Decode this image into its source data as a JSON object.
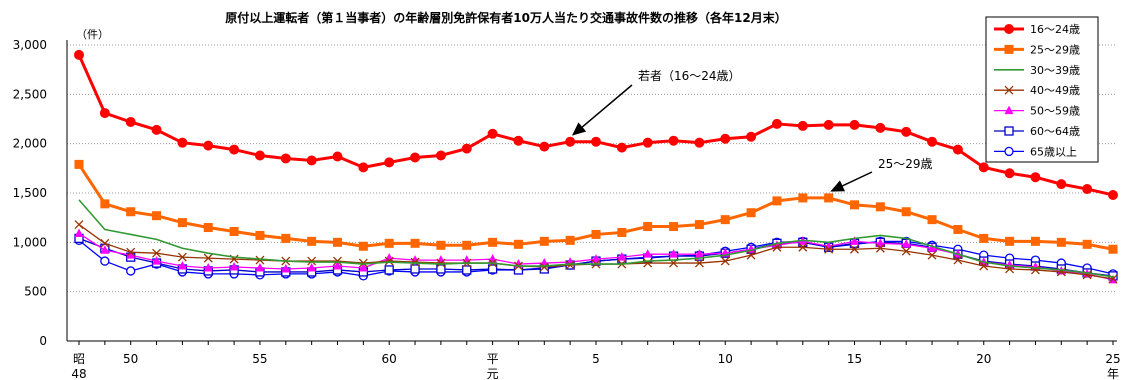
{
  "chart_data": {
    "type": "line",
    "title": "原付以上運転者（第１当事者）の年齢層別免許保有者10万人当たり交通事故件数の推移（各年12月末）",
    "unit_label": "（件）",
    "ylim": [
      0,
      3000
    ],
    "yticks": [
      "0",
      "500",
      "1,000",
      "1,500",
      "2,000",
      "2,500",
      "3,000"
    ],
    "ytick_values": [
      0,
      500,
      1000,
      1500,
      2000,
      2500,
      3000
    ],
    "grid": true,
    "legend_position": "top-right",
    "x": [
      "S48",
      "S49",
      "S50",
      "S51",
      "S52",
      "S53",
      "S54",
      "S55",
      "S56",
      "S57",
      "S58",
      "S59",
      "S60",
      "S61",
      "S62",
      "S63",
      "H1",
      "H2",
      "H3",
      "H4",
      "H5",
      "H6",
      "H7",
      "H8",
      "H9",
      "H10",
      "H11",
      "H12",
      "H13",
      "H14",
      "H15",
      "H16",
      "H17",
      "H18",
      "H19",
      "H20",
      "H21",
      "H22",
      "H23",
      "H24",
      "H25"
    ],
    "x_tick_labels": [
      {
        "index": 0,
        "lines": [
          "昭",
          "48"
        ]
      },
      {
        "index": 2,
        "lines": [
          "50"
        ]
      },
      {
        "index": 7,
        "lines": [
          "55"
        ]
      },
      {
        "index": 12,
        "lines": [
          "60"
        ]
      },
      {
        "index": 16,
        "lines": [
          "平",
          "元"
        ]
      },
      {
        "index": 20,
        "lines": [
          "5"
        ]
      },
      {
        "index": 25,
        "lines": [
          "10"
        ]
      },
      {
        "index": 30,
        "lines": [
          "15"
        ]
      },
      {
        "index": 35,
        "lines": [
          "20"
        ]
      },
      {
        "index": 40,
        "lines": [
          "25",
          "年"
        ]
      }
    ],
    "series": [
      {
        "name": "16～24歳",
        "color": "#ff0000",
        "marker": "filled-circle",
        "values": [
          2900,
          2310,
          2220,
          2140,
          2010,
          1980,
          1940,
          1880,
          1850,
          1830,
          1870,
          1760,
          1810,
          1860,
          1880,
          1950,
          2100,
          2030,
          1970,
          2020,
          2020,
          1960,
          2010,
          2030,
          2010,
          2050,
          2070,
          2200,
          2180,
          2190,
          2190,
          2160,
          2120,
          2020,
          1940,
          1760,
          1700,
          1660,
          1590,
          1540,
          1480
        ]
      },
      {
        "name": "25～29歳",
        "color": "#ff6600",
        "marker": "filled-square",
        "values": [
          1790,
          1390,
          1310,
          1270,
          1200,
          1150,
          1110,
          1070,
          1040,
          1010,
          1000,
          960,
          990,
          990,
          970,
          970,
          1000,
          980,
          1010,
          1020,
          1080,
          1100,
          1160,
          1160,
          1180,
          1230,
          1300,
          1420,
          1450,
          1450,
          1380,
          1360,
          1310,
          1230,
          1130,
          1040,
          1010,
          1010,
          1000,
          980,
          930
        ]
      },
      {
        "name": "30～39歳",
        "color": "#339933",
        "marker": "none",
        "values": [
          1430,
          1130,
          1080,
          1030,
          940,
          890,
          850,
          830,
          810,
          800,
          800,
          780,
          800,
          790,
          780,
          790,
          790,
          760,
          760,
          780,
          780,
          780,
          810,
          820,
          840,
          870,
          920,
          990,
          1020,
          1000,
          1040,
          1070,
          1040,
          960,
          880,
          800,
          760,
          740,
          720,
          690,
          650
        ]
      },
      {
        "name": "40～49歳",
        "color": "#993300",
        "marker": "x",
        "values": [
          1180,
          990,
          900,
          890,
          850,
          840,
          830,
          820,
          810,
          810,
          810,
          790,
          810,
          800,
          790,
          790,
          790,
          760,
          750,
          770,
          780,
          780,
          790,
          790,
          790,
          810,
          870,
          950,
          950,
          930,
          930,
          940,
          910,
          870,
          820,
          760,
          730,
          720,
          700,
          670,
          630
        ]
      },
      {
        "name": "50～59歳",
        "color": "#ff00ff",
        "marker": "triangle",
        "values": [
          1090,
          920,
          870,
          810,
          760,
          740,
          750,
          740,
          730,
          740,
          760,
          740,
          840,
          820,
          820,
          820,
          830,
          780,
          790,
          800,
          830,
          850,
          880,
          880,
          880,
          890,
          930,
          970,
          1010,
          960,
          1010,
          990,
          980,
          940,
          880,
          800,
          770,
          750,
          710,
          680,
          620
        ]
      },
      {
        "name": "60～64歳",
        "color": "#0000cc",
        "marker": "open-square",
        "values": [
          1040,
          940,
          850,
          790,
          730,
          710,
          720,
          700,
          700,
          700,
          720,
          700,
          720,
          730,
          730,
          720,
          730,
          720,
          730,
          770,
          810,
          830,
          840,
          860,
          860,
          890,
          930,
          990,
          1000,
          950,
          990,
          1000,
          990,
          950,
          880,
          810,
          780,
          760,
          730,
          690,
          660
        ]
      },
      {
        "name": "65歳以上",
        "color": "#0000ff",
        "marker": "open-circle",
        "values": [
          1020,
          810,
          710,
          780,
          700,
          680,
          680,
          670,
          680,
          680,
          700,
          660,
          710,
          700,
          700,
          700,
          720,
          720,
          740,
          770,
          810,
          830,
          850,
          860,
          870,
          910,
          950,
          1000,
          1010,
          950,
          980,
          1010,
          1010,
          970,
          930,
          870,
          840,
          820,
          790,
          740,
          680
        ]
      }
    ],
    "annotations": [
      {
        "text": "若者（16～24歳）",
        "series_index": 0,
        "point_index": 19
      },
      {
        "text": "25～29歳",
        "series_index": 1,
        "point_index": 29
      }
    ]
  }
}
